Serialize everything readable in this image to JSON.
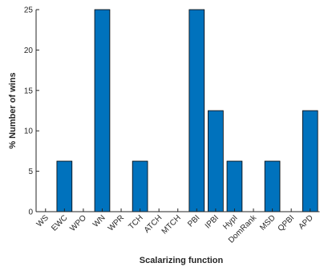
{
  "chart_data": {
    "type": "bar",
    "title": "",
    "xlabel": "Scalarizing function",
    "ylabel": "% Number of wins",
    "categories": [
      "WS",
      "EWC",
      "WPO",
      "WN",
      "WPR",
      "TCH",
      "ATCH",
      "MTCH",
      "PBI",
      "IPBI",
      "HypI",
      "DomRank",
      "MSD",
      "QPBI",
      "APD"
    ],
    "values": [
      0,
      6.25,
      0,
      25,
      0,
      6.25,
      0,
      0,
      25,
      12.5,
      6.25,
      0,
      6.25,
      0,
      12.5
    ],
    "ylim": [
      0,
      25
    ],
    "yticks": [
      0,
      5,
      10,
      15,
      20,
      25
    ],
    "grid": false,
    "colors": {
      "bar_fill": "#0072BD",
      "bar_edge": "#000000",
      "axis": "#262626"
    }
  }
}
